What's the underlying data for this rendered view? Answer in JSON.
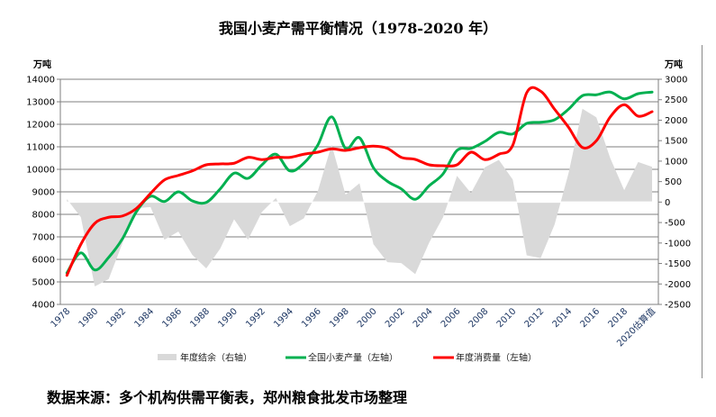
{
  "title": "我国小麦产需平衡情况（1978-2020 年）",
  "source": "数据来源：多个机构供需平衡表，郑州粮食批发市场整理",
  "chart_data": {
    "type": "line+area",
    "title": "我国小麦产需平衡情况（1978-2020 年）",
    "left_unit": "万吨",
    "right_unit": "万吨",
    "left_ylim": [
      4000,
      14000
    ],
    "left_ticks": [
      4000,
      5000,
      6000,
      7000,
      8000,
      9000,
      10000,
      11000,
      12000,
      13000,
      14000
    ],
    "right_ylim": [
      -2500,
      3000
    ],
    "right_ticks": [
      -2500,
      -2000,
      -1500,
      -1000,
      -500,
      0,
      500,
      1000,
      1500,
      2000,
      2500,
      3000
    ],
    "grid": true,
    "legend_position": "bottom",
    "x": [
      1978,
      1979,
      1980,
      1981,
      1982,
      1983,
      1984,
      1985,
      1986,
      1987,
      1988,
      1989,
      1990,
      1991,
      1992,
      1993,
      1994,
      1995,
      1996,
      1997,
      1998,
      1999,
      2000,
      2001,
      2002,
      2003,
      2004,
      2005,
      2006,
      2007,
      2008,
      2009,
      2010,
      2011,
      2012,
      2013,
      2014,
      2015,
      2016,
      2017,
      2018,
      2019,
      2020
    ],
    "x_tick_labels": [
      "1978",
      "1980",
      "1982",
      "1984",
      "1986",
      "1988",
      "1990",
      "1992",
      "1994",
      "1996",
      "1998",
      "2000",
      "2002",
      "2004",
      "2006",
      "2008",
      "2010",
      "2012",
      "2014",
      "2016",
      "2018",
      "2020估算值"
    ],
    "series": [
      {
        "name": "年度结余（右轴）",
        "type": "area",
        "axis": "right",
        "color": "#d9d9d9",
        "values": [
          70,
          -370,
          -2060,
          -1880,
          -990,
          -150,
          -120,
          -920,
          -720,
          -1290,
          -1620,
          -1140,
          -420,
          -920,
          -240,
          100,
          -590,
          -400,
          260,
          1400,
          180,
          460,
          -1030,
          -1470,
          -1490,
          -1760,
          -990,
          -370,
          640,
          220,
          850,
          1030,
          550,
          -1300,
          -1370,
          -550,
          700,
          2280,
          2070,
          1070,
          290,
          980,
          860
        ]
      },
      {
        "name": "全国小麦产量（左轴）",
        "type": "line",
        "axis": "left",
        "color": "#00b050",
        "values": [
          5400,
          6290,
          5530,
          6090,
          6930,
          8130,
          8800,
          8570,
          9000,
          8600,
          8530,
          9130,
          9830,
          9600,
          10200,
          10670,
          9930,
          10270,
          11070,
          12330,
          10930,
          11400,
          10070,
          9470,
          9130,
          8670,
          9270,
          9800,
          10840,
          10930,
          11240,
          11640,
          11570,
          12040,
          12090,
          12200,
          12670,
          13270,
          13310,
          13430,
          13130,
          13360,
          13430
        ]
      },
      {
        "name": "年度消费量（左轴）",
        "type": "line",
        "axis": "left",
        "color": "#ff0000",
        "values": [
          5290,
          6670,
          7600,
          7870,
          7930,
          8270,
          8930,
          9530,
          9730,
          9930,
          10200,
          10240,
          10270,
          10530,
          10430,
          10530,
          10530,
          10670,
          10760,
          10910,
          10840,
          10960,
          11030,
          10930,
          10530,
          10440,
          10200,
          10160,
          10200,
          10760,
          10430,
          10670,
          11070,
          13400,
          13470,
          12670,
          11870,
          10970,
          11270,
          12330,
          12870,
          12360,
          12560
        ]
      }
    ]
  }
}
